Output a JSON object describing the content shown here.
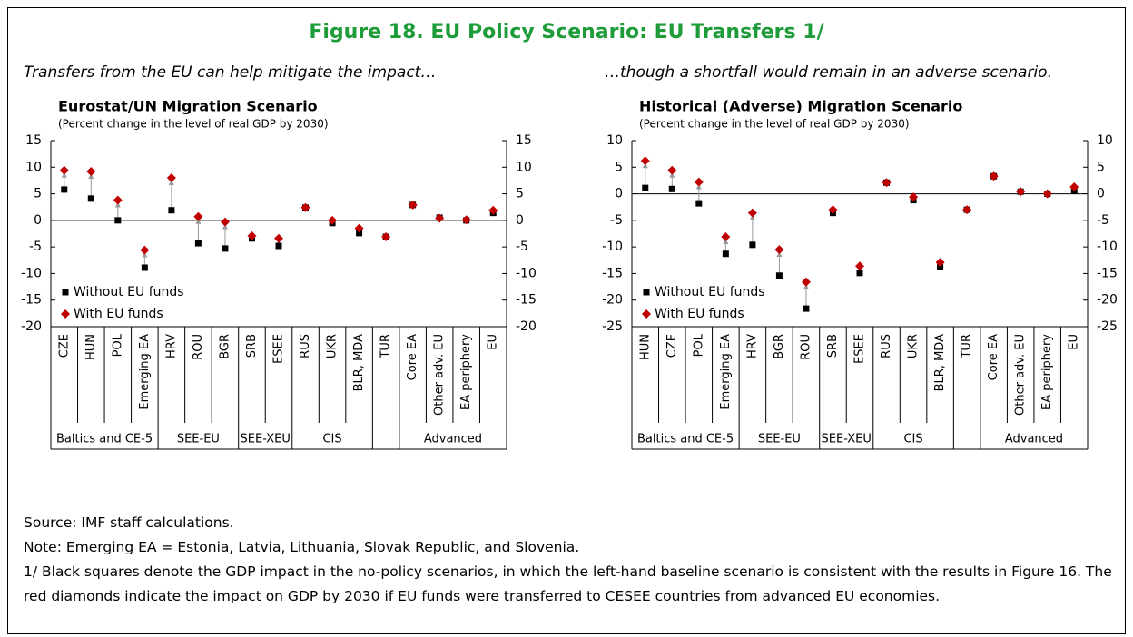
{
  "header": {
    "title": "Figure 18. EU Policy Scenario: EU Transfers 1/"
  },
  "chart_data": [
    {
      "type": "dot",
      "caption": "Transfers from the EU can help mitigate the impact…",
      "title": "Eurostat/UN Migration Scenario",
      "subtitle": "(Percent change in the level of real GDP by 2030)",
      "categories": [
        "CZE",
        "HUN",
        "POL",
        "Emerging EA",
        "HRV",
        "ROU",
        "BGR",
        "SRB",
        "ESEE",
        "RUS",
        "UKR",
        "BLR, MDA",
        "TUR",
        "Core EA",
        "Other adv. EU",
        "EA periphery",
        "EU"
      ],
      "groups": [
        {
          "label": "Baltics and CE-5",
          "from": 0,
          "to": 3
        },
        {
          "label": "SEE-EU",
          "from": 4,
          "to": 6
        },
        {
          "label": "SEE-XEU",
          "from": 7,
          "to": 8
        },
        {
          "label": "CIS",
          "from": 9,
          "to": 11
        },
        {
          "label": "Advanced",
          "from": 13,
          "to": 16
        }
      ],
      "series": [
        {
          "name": "Without EU funds",
          "color": "#000000",
          "marker": "square",
          "values": [
            5.8,
            4.1,
            0,
            -8.9,
            1.9,
            -4.3,
            -5.3,
            -3.4,
            -4.8,
            2.4,
            -0.5,
            -2.4,
            -3.1,
            2.9,
            0.5,
            0,
            1.4
          ]
        },
        {
          "name": "With EU funds",
          "color": "#c00000",
          "marker": "diamond",
          "values": [
            9.4,
            9.2,
            3.8,
            -5.6,
            8.0,
            0.7,
            -0.3,
            -2.9,
            -3.4,
            2.4,
            0,
            -1.5,
            -3.1,
            2.9,
            0.4,
            0.1,
            1.9
          ]
        }
      ],
      "ylim": [
        -20,
        15
      ],
      "yticks": [
        -20,
        -15,
        -10,
        -5,
        0,
        5,
        10,
        15
      ],
      "legend": "lower left"
    },
    {
      "type": "dot",
      "caption": "…though a shortfall would remain in an adverse scenario.",
      "title": "Historical (Adverse) Migration Scenario",
      "subtitle": "(Percent change in the level of real GDP by 2030)",
      "categories": [
        "HUN",
        "CZE",
        "POL",
        "Emerging EA",
        "HRV",
        "BGR",
        "ROU",
        "SRB",
        "ESEE",
        "RUS",
        "UKR",
        "BLR, MDA",
        "TUR",
        "Core EA",
        "Other adv. EU",
        "EA periphery",
        "EU"
      ],
      "groups": [
        {
          "label": "Baltics and CE-5",
          "from": 0,
          "to": 3
        },
        {
          "label": "SEE-EU",
          "from": 4,
          "to": 6
        },
        {
          "label": "SEE-XEU",
          "from": 7,
          "to": 8
        },
        {
          "label": "CIS",
          "from": 9,
          "to": 11
        },
        {
          "label": "Advanced",
          "from": 13,
          "to": 16
        }
      ],
      "series": [
        {
          "name": "Without EU funds",
          "color": "#000000",
          "marker": "square",
          "values": [
            1.1,
            0.9,
            -1.8,
            -11.3,
            -9.6,
            -15.4,
            -21.6,
            -3.6,
            -14.9,
            2.1,
            -1.2,
            -13.8,
            -3.0,
            3.3,
            0.4,
            0,
            0.6
          ]
        },
        {
          "name": "With EU funds",
          "color": "#c00000",
          "marker": "diamond",
          "values": [
            6.2,
            4.4,
            2.2,
            -8.1,
            -3.6,
            -10.5,
            -16.6,
            -3.0,
            -13.6,
            2.1,
            -0.6,
            -12.9,
            -3.0,
            3.3,
            0.4,
            0,
            1.3
          ]
        }
      ],
      "ylim": [
        -25,
        10
      ],
      "yticks": [
        -25,
        -20,
        -15,
        -10,
        -5,
        0,
        5,
        10
      ],
      "legend": "lower left"
    }
  ],
  "footer": {
    "source": "Source: IMF staff calculations.",
    "note": "Note: Emerging EA = Estonia, Latvia, Lithuania, Slovak Republic, and Slovenia.",
    "footnote": "1/ Black squares denote the GDP impact in the no-policy scenarios, in which the left-hand baseline scenario is consistent with the results in Figure 16. The red diamonds indicate the impact on GDP by 2030 if EU funds were transferred to CESEE countries from advanced EU economies."
  }
}
